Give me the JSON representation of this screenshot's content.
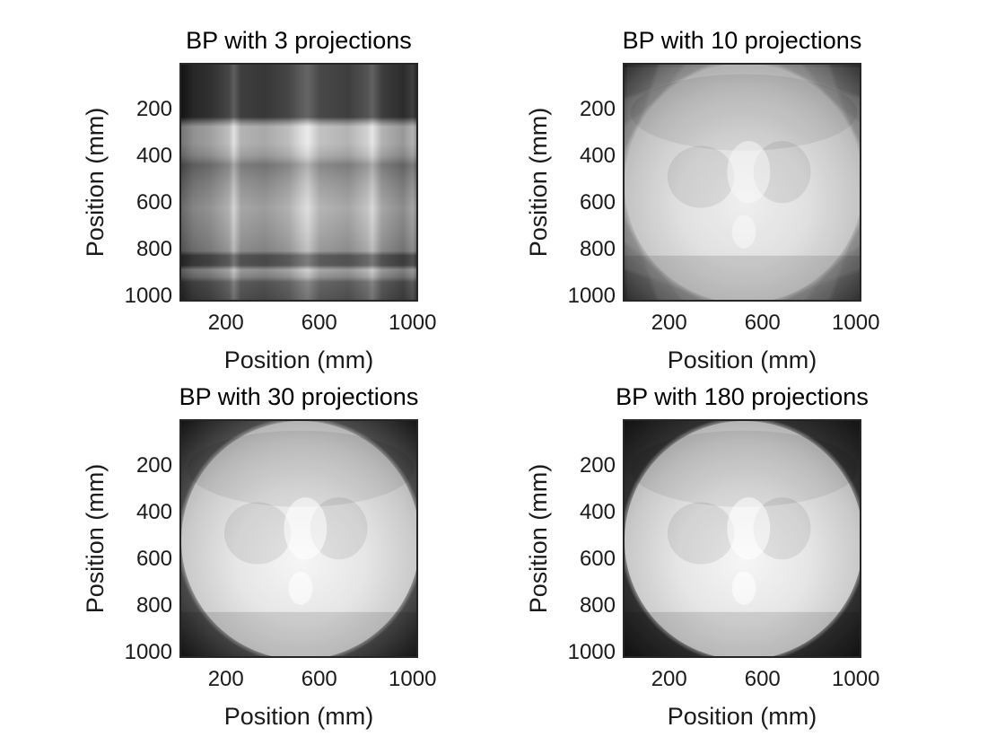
{
  "chart_data": [
    {
      "type": "heatmap",
      "title": "BP with 3 projections",
      "xlabel": "Position (mm)",
      "ylabel": "Position (mm)",
      "xticks": [
        200,
        600,
        1000
      ],
      "yticks": [
        200,
        400,
        600,
        800,
        1000
      ],
      "xlim": [
        1,
        1024
      ],
      "ylim": [
        1,
        1024
      ],
      "y_reversed": true,
      "colormap": "gray",
      "projections": 3,
      "grid": false
    },
    {
      "type": "heatmap",
      "title": "BP with 10 projections",
      "xlabel": "Position (mm)",
      "ylabel": "Position (mm)",
      "xticks": [
        200,
        600,
        1000
      ],
      "yticks": [
        200,
        400,
        600,
        800,
        1000
      ],
      "xlim": [
        1,
        1024
      ],
      "ylim": [
        1,
        1024
      ],
      "y_reversed": true,
      "colormap": "gray",
      "projections": 10,
      "grid": false
    },
    {
      "type": "heatmap",
      "title": "BP with 30 projections",
      "xlabel": "Position (mm)",
      "ylabel": "Position (mm)",
      "xticks": [
        200,
        600,
        1000
      ],
      "yticks": [
        200,
        400,
        600,
        800,
        1000
      ],
      "xlim": [
        1,
        1024
      ],
      "ylim": [
        1,
        1024
      ],
      "y_reversed": true,
      "colormap": "gray",
      "projections": 30,
      "grid": false
    },
    {
      "type": "heatmap",
      "title": "BP with 180 projections",
      "xlabel": "Position (mm)",
      "ylabel": "Position (mm)",
      "xticks": [
        200,
        600,
        1000
      ],
      "yticks": [
        200,
        400,
        600,
        800,
        1000
      ],
      "xlim": [
        1,
        1024
      ],
      "ylim": [
        1,
        1024
      ],
      "y_reversed": true,
      "colormap": "gray",
      "projections": 180,
      "grid": false
    }
  ]
}
